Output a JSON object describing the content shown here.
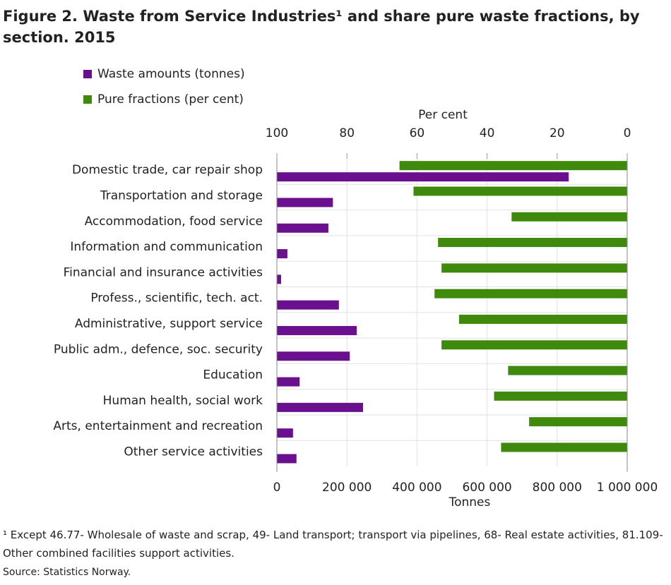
{
  "chart_data": {
    "type": "bar",
    "orientation": "horizontal",
    "title": "Figure 2. Waste from Service Industries¹ and share pure waste fractions, by section. 2015",
    "categories": [
      "Domestic trade, car repair shop",
      "Transportation and storage",
      "Accommodation, food service",
      "Information and communication",
      "Financial and insurance activities",
      "Profess., scientific, tech. act.",
      "Administrative, support service",
      "Public adm., defence, soc. security",
      "Education",
      "Human health, social work",
      "Arts, entertainment and recreation",
      "Other service activities"
    ],
    "series": [
      {
        "name": "Waste amounts (tonnes)",
        "color": "#6a0f8e",
        "axis": "x",
        "values": [
          833000,
          160000,
          147000,
          30000,
          12000,
          177000,
          228000,
          208000,
          65000,
          246000,
          46000,
          56000
        ]
      },
      {
        "name": "Pure fractions (per cent)",
        "color": "#3f8a0c",
        "axis": "x2",
        "values": [
          65,
          61,
          33,
          54,
          53,
          55,
          48,
          53,
          34,
          38,
          28,
          36
        ]
      }
    ],
    "xlim": [
      0,
      1000000
    ],
    "xticks": [
      0,
      {
        "value": 200000,
        "label": "200 000"
      },
      {
        "value": 400000,
        "label": "400 000"
      },
      {
        "value": 600000,
        "label": "600 000"
      },
      {
        "value": 800000,
        "label": "800 000"
      },
      {
        "value": 1000000,
        "label": "1 000 000"
      }
    ],
    "xlabel": "Tonnes",
    "x2lim": [
      100,
      0
    ],
    "x2ticks": [
      100,
      80,
      60,
      40,
      20,
      0
    ],
    "x2label": "Per cent",
    "grid": true,
    "footnote": "¹ Except 46.77- Wholesale of waste and scrap, 49- Land transport; transport via pipelines, 68- Real estate activities, 81.109- Other combined facilities support activities.",
    "source": "Source: Statistics Norway."
  }
}
